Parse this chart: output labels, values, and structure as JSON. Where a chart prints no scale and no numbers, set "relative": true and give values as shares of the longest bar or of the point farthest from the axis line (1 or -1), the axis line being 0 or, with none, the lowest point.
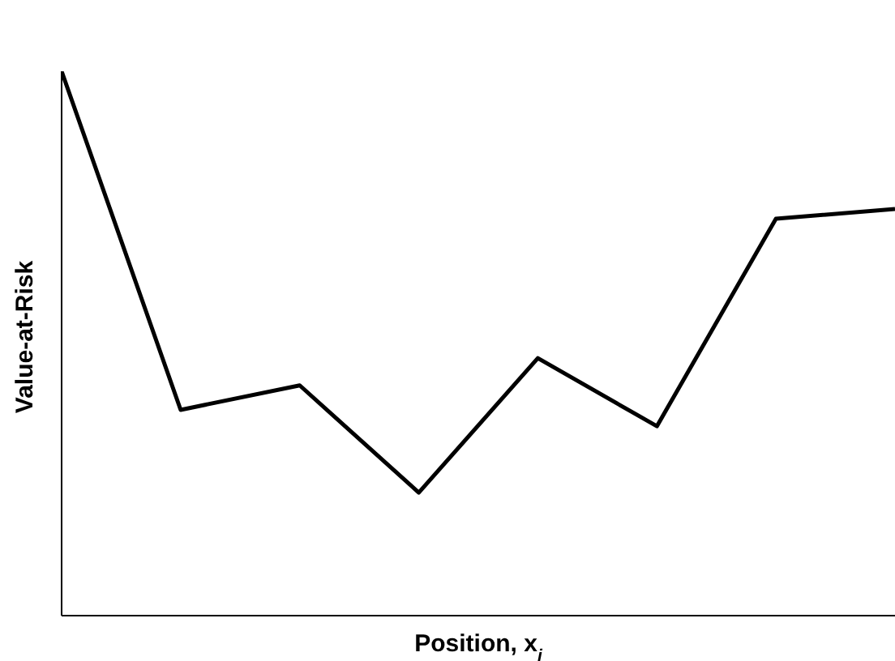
{
  "chart_data": {
    "type": "line",
    "relative": true,
    "xlabel": "Position, x$_{i}$",
    "ylabel": "Value-at-Risk",
    "categories": [
      null,
      null,
      null,
      null,
      null,
      null,
      null,
      null
    ],
    "series": [
      {
        "color": "#000000",
        "values": [
          1,
          0.378,
          0.423,
          0.226,
          0.473,
          0.348,
          0.729,
          0.747
        ]
      }
    ],
    "grid": false,
    "legend": false,
    "marker": "none",
    "line_style": "solid"
  }
}
